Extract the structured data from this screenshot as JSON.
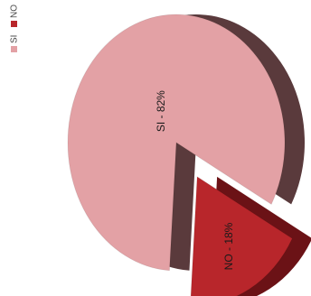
{
  "chart_data": {
    "type": "pie",
    "title": "",
    "series": [
      {
        "name": "SI",
        "value": 82,
        "label": "SI - 82%",
        "color": "#e3a1a5",
        "side_color": "#5a3a3c"
      },
      {
        "name": "NO",
        "value": 18,
        "label": "NO - 18%",
        "color": "#b8262b",
        "side_color": "#6b1216"
      }
    ],
    "exploded": "NO",
    "legend": {
      "placement": "left",
      "orientation": "vertical-rotated",
      "entries": [
        "SI",
        "NO"
      ]
    }
  }
}
